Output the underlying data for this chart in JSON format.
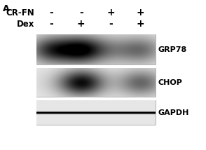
{
  "panel_label": "A",
  "row_labels": [
    "CR-FN",
    "Dex"
  ],
  "col_signs": [
    [
      "-",
      "-",
      "+",
      "+"
    ],
    [
      "-",
      "+",
      "-",
      "+"
    ]
  ],
  "band_labels": [
    "GRP78",
    "CHOP",
    "GAPDH"
  ],
  "fig_bg_color": "#ffffff",
  "gel_bg_color": "#e8e8e8",
  "n_lanes": 4,
  "n_bands": 3,
  "grp78_intensities": [
    0.78,
    1.0,
    0.3,
    0.52
  ],
  "chop_intensities": [
    0.05,
    1.0,
    0.04,
    0.58
  ],
  "gapdh_intensities": [
    0.88,
    0.88,
    0.88,
    0.88
  ],
  "label_fontsize": 8,
  "sign_fontsize": 10,
  "panel_fontsize": 9,
  "row_label_fontsize": 8.5
}
